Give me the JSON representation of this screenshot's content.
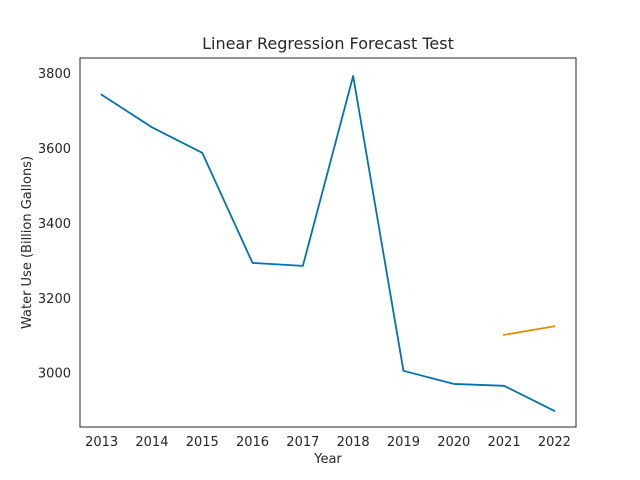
{
  "chart_data": {
    "type": "line",
    "title": "Linear Regression Forecast Test",
    "xlabel": "Year",
    "ylabel": "Water Use (Billion Gallons)",
    "x_ticks": [
      "2013",
      "2014",
      "2015",
      "2016",
      "2017",
      "2018",
      "2019",
      "2020",
      "2021",
      "2022"
    ],
    "y_ticks": [
      "3000",
      "3200",
      "3400",
      "3600",
      "3800"
    ],
    "xlim": [
      2012.57,
      2022.43
    ],
    "ylim": [
      2855,
      3840
    ],
    "grid": false,
    "series": [
      {
        "color": "#0173b2",
        "x": [
          2013,
          2014,
          2015,
          2016,
          2017,
          2018,
          2019,
          2020,
          2021,
          2022
        ],
        "y": [
          3742,
          3655,
          3587,
          3293,
          3285,
          3792,
          3005,
          2970,
          2965,
          2898
        ]
      },
      {
        "color": "#de8f05",
        "x": [
          2021,
          2022
        ],
        "y": [
          3101,
          3124
        ]
      }
    ]
  }
}
